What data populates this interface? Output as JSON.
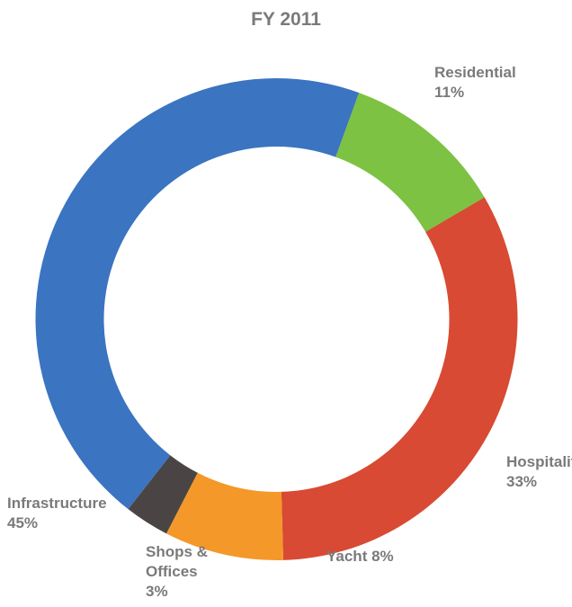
{
  "chart_data": {
    "type": "donut",
    "title": "FY 2011",
    "categories": [
      "Residential",
      "Hospitality",
      "Yacht",
      "Shops & Offices",
      "Infrastructure"
    ],
    "values": [
      11,
      33,
      8,
      3,
      45
    ],
    "value_labels": [
      "11%",
      "33%",
      "8%",
      "3%",
      "45%"
    ],
    "colors": [
      "#7dc242",
      "#d84a33",
      "#f4982a",
      "#4a4544",
      "#3b74c0"
    ]
  }
}
